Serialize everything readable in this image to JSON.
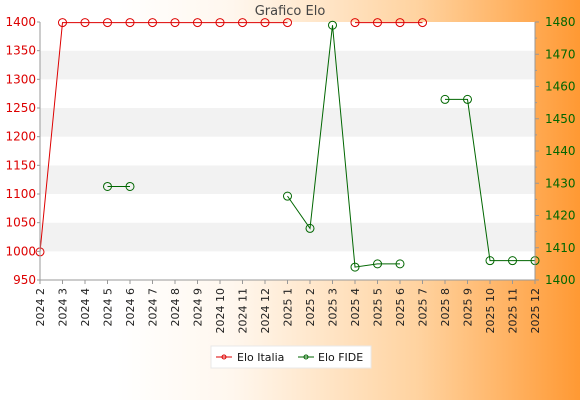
{
  "chart_data": {
    "type": "line",
    "title": "Grafico Elo",
    "categories": [
      "2024 2",
      "2024 3",
      "2024 4",
      "2024 5",
      "2024 6",
      "2024 7",
      "2024 8",
      "2024 9",
      "2024 10",
      "2024 11",
      "2024 12",
      "2025 1",
      "2025 2",
      "2025 3",
      "2025 4",
      "2025 5",
      "2025 6",
      "2025 7",
      "2025 8",
      "2025 9",
      "2025 10",
      "2025 11",
      "2025 12"
    ],
    "left_axis": {
      "range": [
        950,
        1400
      ],
      "ticks": [
        950,
        1000,
        1050,
        1100,
        1150,
        1200,
        1250,
        1300,
        1350,
        1400
      ],
      "color": "#dd0000"
    },
    "right_axis": {
      "range": [
        1400,
        1480
      ],
      "ticks": [
        1400,
        1410,
        1420,
        1430,
        1440,
        1450,
        1460,
        1470,
        1480
      ],
      "color": "#006600"
    },
    "grid": "horizontal bands",
    "legend_position": "bottom",
    "series": [
      {
        "name": "Elo Italia",
        "axis": "left",
        "color": "#dd0000",
        "values": [
          999,
          1399,
          1399,
          1399,
          1399,
          1399,
          1399,
          1399,
          1399,
          1399,
          1399,
          1399,
          null,
          null,
          1399,
          1399,
          1399,
          1399,
          null,
          null,
          null,
          null,
          null
        ]
      },
      {
        "name": "Elo FIDE",
        "axis": "right",
        "color": "#006600",
        "values": [
          null,
          null,
          null,
          1429,
          1429,
          null,
          null,
          null,
          null,
          null,
          null,
          1426,
          1416,
          1479,
          1404,
          1405,
          1405,
          null,
          1456,
          1456,
          1406,
          1406,
          1406
        ]
      }
    ]
  }
}
